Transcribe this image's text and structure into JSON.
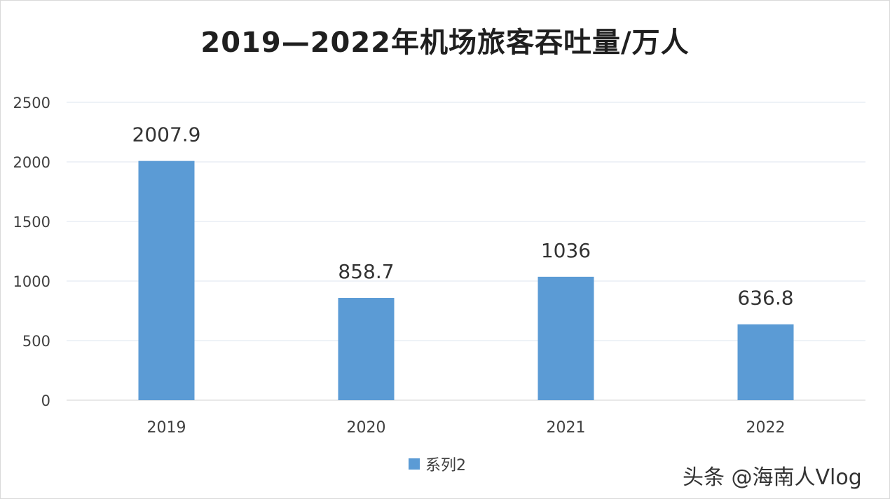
{
  "chart_data": {
    "type": "bar",
    "title": "2019—2022年机场旅客吞吐量/万人",
    "categories": [
      "2019",
      "2020",
      "2021",
      "2022"
    ],
    "series": [
      {
        "name": "系列2",
        "values": [
          2007.9,
          858.7,
          1036,
          636.8
        ]
      }
    ],
    "data_labels": [
      "2007.9",
      "858.7",
      "1036",
      "636.8"
    ],
    "xlabel": "",
    "ylabel": "",
    "ylim": [
      0,
      2500
    ],
    "yticks": [
      0,
      500,
      1000,
      1500,
      2000,
      2500
    ],
    "grid": true,
    "legend": "bottom",
    "bar_color": "#5b9bd5"
  },
  "watermark": "头条 @海南人Vlog"
}
